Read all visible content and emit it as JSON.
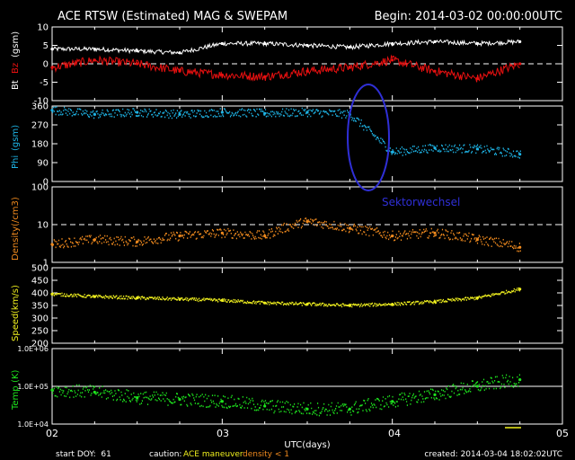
{
  "header": {
    "title": "ACE RTSW (Estimated) MAG & SWEPAM",
    "begin": "Begin: 2014-03-02 00:00:00UTC"
  },
  "footer": {
    "start_doy": "start DOY:  61",
    "caution_label": "caution:",
    "caution_maneuver": "ACE maneuver",
    "caution_density": "density < 1",
    "created": "created: 2014-03-04 18:02:02UTC"
  },
  "annotation": {
    "text": "Sektorwechsel",
    "color": "#2f2fd6"
  },
  "colors": {
    "bt": "#ffffff",
    "bz": "#e81010",
    "phi": "#1eb4e6",
    "density": "#f08a1e",
    "speed": "#f0f01e",
    "temp": "#1ee61e",
    "axes": "#ffffff",
    "maneuver": "#f0f01e"
  },
  "chart_data": [
    {
      "type": "line",
      "ylabel_parts": [
        "Bt",
        "Bz",
        "(gsm)"
      ],
      "ylim": [
        -10,
        10
      ],
      "yticks": [
        "10",
        "5",
        "0",
        "-5",
        "-10"
      ],
      "dashed_ref": 0,
      "x": [
        "03-02 00:00",
        "03-02 06:00",
        "03-02 12:00",
        "03-02 18:00",
        "03-03 00:00",
        "03-03 06:00",
        "03-03 12:00",
        "03-03 18:00",
        "03-04 00:00",
        "03-04 06:00",
        "03-04 12:00",
        "03-04 18:00"
      ],
      "series": [
        {
          "name": "Bt",
          "values": [
            4,
            4,
            3.5,
            3,
            5.5,
            5.5,
            5,
            4.5,
            5.5,
            6,
            5.5,
            6
          ]
        },
        {
          "name": "Bz",
          "values": [
            -1,
            1,
            0,
            -2,
            -3,
            -3.5,
            -2,
            -1,
            1,
            -2,
            -4,
            0
          ]
        }
      ]
    },
    {
      "type": "scatter",
      "ylabel_parts": [
        "Phi",
        "(gsm)"
      ],
      "ylim": [
        0,
        360
      ],
      "yticks": [
        "360",
        "270",
        "180",
        "90",
        "0"
      ],
      "x": [
        "03-02 00:00",
        "03-02 06:00",
        "03-02 12:00",
        "03-02 18:00",
        "03-03 00:00",
        "03-03 06:00",
        "03-03 12:00",
        "03-03 18:00",
        "03-04 00:00",
        "03-04 06:00",
        "03-04 12:00",
        "03-04 18:00"
      ],
      "values": [
        340,
        320,
        330,
        320,
        330,
        325,
        330,
        320,
        140,
        160,
        155,
        130
      ]
    },
    {
      "type": "line",
      "ylabel_parts": [
        "Density",
        "(/cm3)"
      ],
      "ylim": [
        1,
        100
      ],
      "log_y": true,
      "yticks": [
        "100",
        "10",
        "1"
      ],
      "dashed_ref": 10,
      "x": [
        "03-02 00:00",
        "03-02 06:00",
        "03-02 12:00",
        "03-02 18:00",
        "03-03 00:00",
        "03-03 06:00",
        "03-03 12:00",
        "03-03 18:00",
        "03-04 00:00",
        "03-04 06:00",
        "03-04 12:00",
        "03-04 18:00"
      ],
      "values": [
        3,
        4,
        3.5,
        5,
        6,
        5,
        12,
        8,
        5,
        6,
        4,
        2.5
      ]
    },
    {
      "type": "line",
      "ylabel_parts": [
        "Speed",
        "(km/s)"
      ],
      "ylim": [
        200,
        500
      ],
      "yticks": [
        "500",
        "450",
        "400",
        "350",
        "300",
        "250",
        "200"
      ],
      "x": [
        "03-02 00:00",
        "03-02 06:00",
        "03-02 12:00",
        "03-02 18:00",
        "03-03 00:00",
        "03-03 06:00",
        "03-03 12:00",
        "03-03 18:00",
        "03-04 00:00",
        "03-04 06:00",
        "03-04 12:00",
        "03-04 18:00"
      ],
      "values": [
        395,
        385,
        380,
        375,
        370,
        360,
        355,
        350,
        355,
        365,
        380,
        415
      ]
    },
    {
      "type": "scatter",
      "ylabel_parts": [
        "Temp",
        "(K)"
      ],
      "ylim": [
        10000,
        1000000
      ],
      "log_y": true,
      "yticks": [
        "1.0E+06",
        "1.0E+05",
        "1.0E+04"
      ],
      "dashed_ref": 100000,
      "x": [
        "03-02 00:00",
        "03-02 06:00",
        "03-02 12:00",
        "03-02 18:00",
        "03-03 00:00",
        "03-03 06:00",
        "03-03 12:00",
        "03-03 18:00",
        "03-04 00:00",
        "03-04 06:00",
        "03-04 12:00",
        "03-04 18:00"
      ],
      "values": [
        80000,
        70000,
        50000,
        45000,
        40000,
        30000,
        25000,
        25000,
        40000,
        60000,
        100000,
        150000
      ]
    }
  ],
  "x_axis": {
    "ticks": [
      "02",
      "03",
      "04",
      "05"
    ],
    "label": "UTC(days)"
  }
}
